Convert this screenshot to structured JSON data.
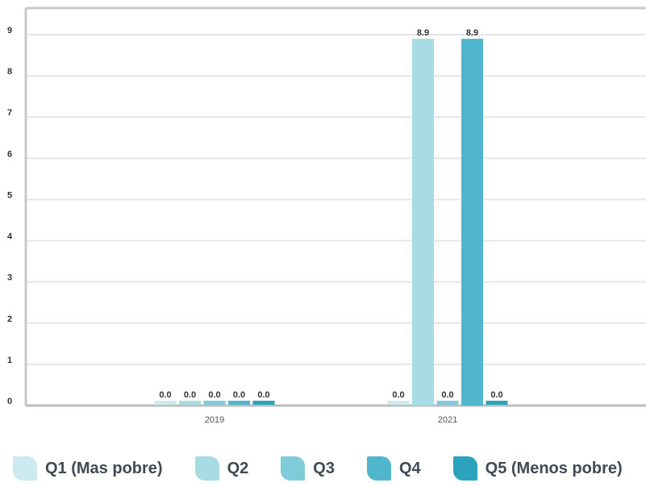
{
  "chart_data": {
    "type": "bar",
    "categories": [
      "2019",
      "2021"
    ],
    "series": [
      {
        "name": "Q1 (Mas pobre)",
        "values": [
          0.0,
          0.0
        ],
        "color": "#cdeaf0"
      },
      {
        "name": "Q2",
        "values": [
          0.0,
          8.9
        ],
        "color": "#a7dbe5"
      },
      {
        "name": "Q3",
        "values": [
          0.0,
          0.0
        ],
        "color": "#7fcbda"
      },
      {
        "name": "Q4",
        "values": [
          0.0,
          8.9
        ],
        "color": "#4fb6cb"
      },
      {
        "name": "Q5 (Menos pobre)",
        "values": [
          0.0,
          0.0
        ],
        "color": "#2ba3bf"
      }
    ],
    "data_labels": [
      [
        "0.0",
        "0.0"
      ],
      [
        "0.0",
        "8.9"
      ],
      [
        "0.0",
        "0.0"
      ],
      [
        "0.0",
        "8.9"
      ],
      [
        "0.0",
        "0.0"
      ]
    ],
    "y_ticks": [
      "0",
      "1",
      "2",
      "3",
      "4",
      "5",
      "6",
      "7",
      "8",
      "9"
    ],
    "ylim": [
      0,
      9
    ],
    "grid": true,
    "legend_position": "bottom",
    "title": "",
    "xlabel": "",
    "ylabel": ""
  }
}
